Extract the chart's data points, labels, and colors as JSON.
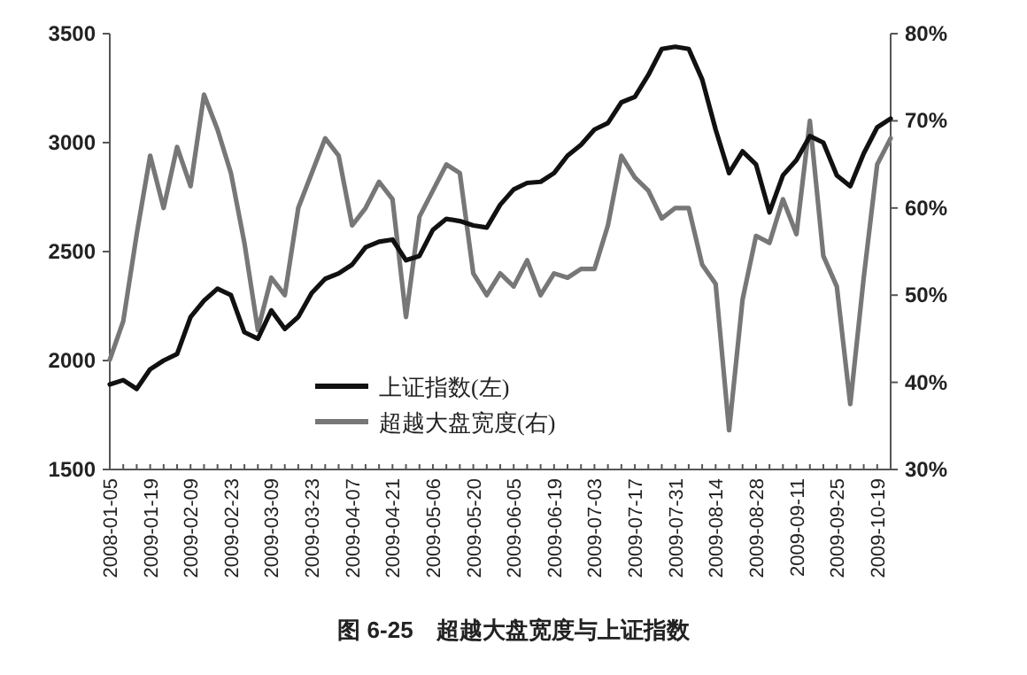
{
  "chart_data": {
    "type": "line",
    "title": "图 6-25　超越大盘宽度与上证指数",
    "categories": [
      "2008-01-05",
      null,
      null,
      "2009-01-19",
      null,
      null,
      "2009-02-09",
      null,
      null,
      "2009-02-23",
      null,
      null,
      "2009-03-09",
      null,
      null,
      "2009-03-23",
      null,
      null,
      "2009-04-07",
      null,
      null,
      "2009-04-21",
      null,
      null,
      "2009-05-06",
      null,
      null,
      "2009-05-20",
      null,
      null,
      "2009-06-05",
      null,
      null,
      "2009-06-19",
      null,
      null,
      "2009-07-03",
      null,
      null,
      "2009-07-17",
      null,
      null,
      "2009-07-31",
      null,
      null,
      "2009-08-14",
      null,
      null,
      "2009-08-28",
      null,
      null,
      "2009-09-11",
      null,
      null,
      "2009-09-25",
      null,
      null,
      "2009-10-19",
      null
    ],
    "series": [
      {
        "name": "上证指数(左)",
        "color": "#111111",
        "values": [
          1890,
          1910,
          1870,
          1960,
          2000,
          2030,
          2200,
          2275,
          2330,
          2300,
          2130,
          2100,
          2230,
          2145,
          2200,
          2310,
          2375,
          2400,
          2440,
          2520,
          2545,
          2555,
          2460,
          2480,
          2600,
          2650,
          2640,
          2620,
          2610,
          2715,
          2785,
          2815,
          2820,
          2860,
          2940,
          2990,
          3060,
          3090,
          3185,
          3210,
          3310,
          3430,
          3440,
          3430,
          3290,
          3060,
          2860,
          2960,
          2900,
          2680,
          2850,
          2920,
          3030,
          3000,
          2850,
          2800,
          2950,
          3070,
          3110
        ]
      },
      {
        "name": "超越大盘宽度(右)",
        "color": "#777777",
        "axis": "y2",
        "values": [
          42.6,
          47,
          57,
          66,
          60,
          67,
          62.5,
          73,
          69,
          64,
          56,
          46,
          52,
          50,
          60,
          64,
          68,
          66,
          58,
          60,
          63,
          61,
          47.5,
          59,
          62,
          65,
          64,
          52.5,
          50,
          52.5,
          51,
          54,
          50,
          52.5,
          52,
          53,
          53,
          58,
          66,
          63.5,
          62,
          58.8,
          60,
          60,
          53.5,
          51.3,
          34.5,
          49.5,
          56.8,
          56,
          61,
          57,
          70,
          54.5,
          51,
          37.5,
          52,
          65,
          68
        ]
      }
    ],
    "ylim": [
      1500,
      3500
    ],
    "yticks": [
      1500,
      2000,
      2500,
      3000,
      3500
    ],
    "y2lim": [
      30,
      80
    ],
    "y2ticks": [
      {
        "value": 30,
        "label": "30%"
      },
      {
        "value": 40,
        "label": "40%"
      },
      {
        "value": 50,
        "label": "50%"
      },
      {
        "value": 60,
        "label": "60%"
      },
      {
        "value": 70,
        "label": "70%"
      },
      {
        "value": 80,
        "label": "80%"
      }
    ],
    "legend": "bottom left"
  }
}
